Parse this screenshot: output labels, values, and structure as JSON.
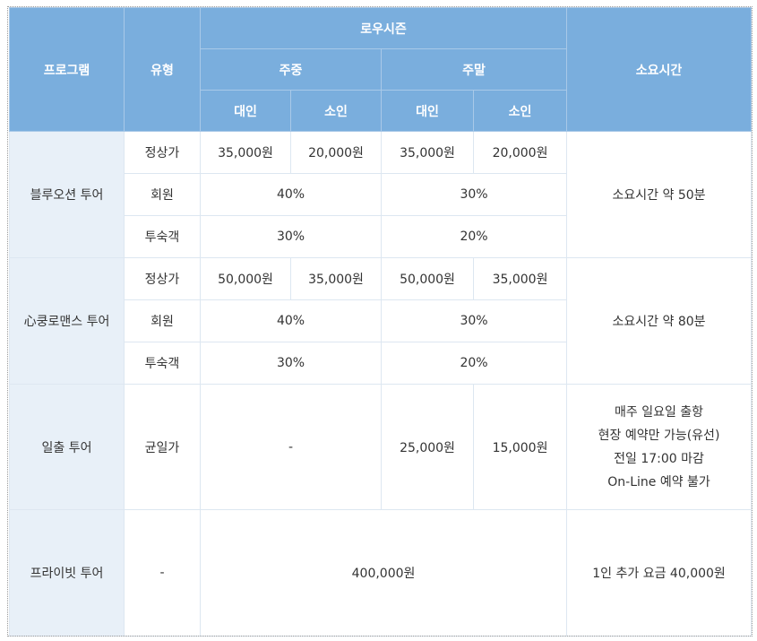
{
  "header": {
    "program": "프로그램",
    "type": "유형",
    "low_season": "로우시즌",
    "weekday": "주중",
    "weekend": "주말",
    "adult": "대인",
    "child": "소인",
    "duration": "소요시간"
  },
  "tours": [
    {
      "name": "블루오션 투어",
      "duration": "소요시간 약 50분",
      "rows": [
        {
          "type": "정상가",
          "weekday_adult": "35,000원",
          "weekday_child": "20,000원",
          "weekend_adult": "35,000원",
          "weekend_child": "20,000원"
        },
        {
          "type": "회원",
          "weekday": "40%",
          "weekend": "30%"
        },
        {
          "type": "투숙객",
          "weekday": "30%",
          "weekend": "20%"
        }
      ]
    },
    {
      "name": "心쿵로맨스 투어",
      "duration": "소요시간 약 80분",
      "rows": [
        {
          "type": "정상가",
          "weekday_adult": "50,000원",
          "weekday_child": "35,000원",
          "weekend_adult": "50,000원",
          "weekend_child": "35,000원"
        },
        {
          "type": "회원",
          "weekday": "40%",
          "weekend": "30%"
        },
        {
          "type": "투숙객",
          "weekday": "30%",
          "weekend": "20%"
        }
      ]
    },
    {
      "name": "일출 투어",
      "type": "균일가",
      "weekday": "-",
      "weekend_adult": "25,000원",
      "weekend_child": "15,000원",
      "notes": [
        "매주 일요일 출항",
        "현장 예약만 가능(유선)",
        "전일 17:00 마감",
        "On-Line 예약 불가"
      ]
    },
    {
      "name": "프라이빗 투어",
      "type": "-",
      "price": "400,000원",
      "duration": "1인 추가 요금 40,000원"
    }
  ]
}
